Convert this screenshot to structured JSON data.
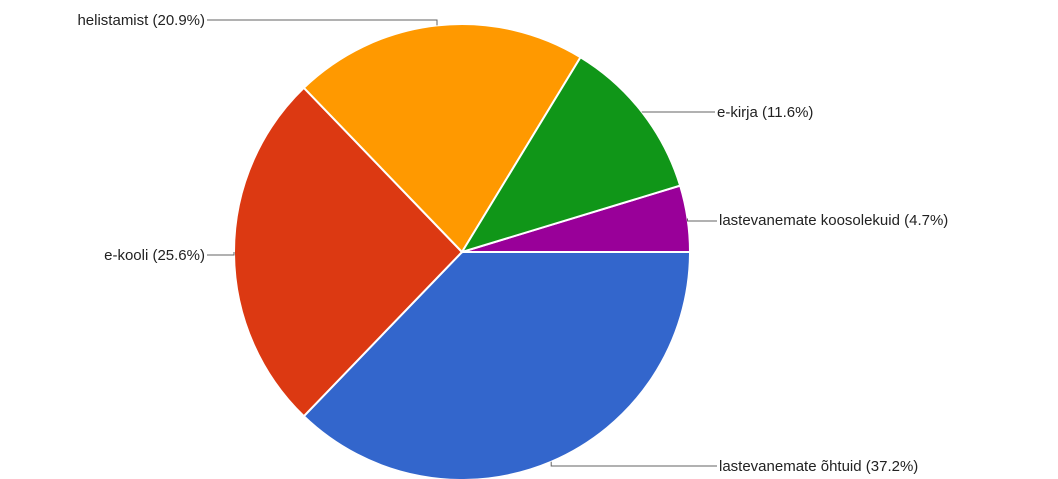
{
  "chart_data": {
    "type": "pie",
    "title": "",
    "legend": "labels-with-leader-lines",
    "slices": [
      {
        "name": "lastevanemate koosolekuid",
        "value": 4.7,
        "label": "lastevanemate koosolekuid  (4.7%)",
        "color": "#990099"
      },
      {
        "name": "lastevanemate õhtuid",
        "value": 37.2,
        "label": "lastevanemate õhtuid  (37.2%)",
        "color": "#3366cc"
      },
      {
        "name": "e-kooli",
        "value": 25.6,
        "label": "e-kooli   (25.6%)",
        "color": "#dc3912"
      },
      {
        "name": "helistamist",
        "value": 20.9,
        "label": "helistamist   (20.9%)",
        "color": "#ff9900"
      },
      {
        "name": "e-kirja",
        "value": 11.6,
        "label": "e-kirja   (11.6%)",
        "color": "#109618"
      }
    ]
  }
}
